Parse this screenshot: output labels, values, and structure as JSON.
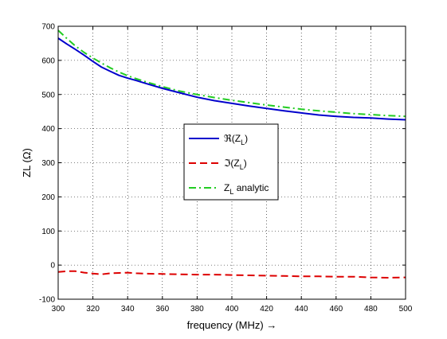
{
  "chart_data": {
    "type": "line",
    "title": "",
    "xlabel": "frequency (MHz) →",
    "ylabel": "ZL (Ω)",
    "xlim": [
      300,
      500
    ],
    "ylim": [
      -100,
      700
    ],
    "xticks": [
      300,
      320,
      340,
      360,
      380,
      400,
      420,
      440,
      460,
      480,
      500
    ],
    "yticks": [
      -100,
      0,
      100,
      200,
      300,
      400,
      500,
      600,
      700
    ],
    "grid": true,
    "legend_position": "center",
    "series": [
      {
        "name": "ℜ(Z_L)",
        "legend_main": "ℜ(Z",
        "legend_sub": "L",
        "legend_tail": ")",
        "color": "#0000cc",
        "style": "solid",
        "x": [
          300,
          305,
          310,
          315,
          320,
          325,
          330,
          335,
          340,
          345,
          350,
          360,
          370,
          380,
          390,
          400,
          410,
          420,
          430,
          440,
          450,
          460,
          470,
          480,
          490,
          500
        ],
        "values": [
          665,
          648,
          632,
          615,
          597,
          580,
          568,
          556,
          548,
          541,
          533,
          518,
          505,
          492,
          482,
          474,
          466,
          459,
          452,
          446,
          440,
          436,
          433,
          431,
          428,
          426
        ]
      },
      {
        "name": "ℑ(Z_L)",
        "legend_main": "ℑ(Z",
        "legend_sub": "L",
        "legend_tail": ")",
        "color": "#dd0000",
        "style": "dashed",
        "x": [
          300,
          305,
          310,
          315,
          320,
          325,
          330,
          335,
          340,
          345,
          350,
          360,
          370,
          380,
          390,
          400,
          410,
          420,
          430,
          440,
          450,
          460,
          470,
          480,
          490,
          500
        ],
        "values": [
          -20,
          -18,
          -18,
          -22,
          -25,
          -27,
          -24,
          -23,
          -22,
          -24,
          -25,
          -26,
          -27,
          -28,
          -28,
          -29,
          -30,
          -31,
          -32,
          -33,
          -33,
          -34,
          -34,
          -36,
          -37,
          -36
        ]
      },
      {
        "name": "Z_L analytic",
        "legend_main": "Z",
        "legend_sub": "L",
        "legend_tail": " analytic",
        "color": "#22cc22",
        "style": "dashdot",
        "x": [
          300,
          305,
          310,
          315,
          320,
          325,
          330,
          335,
          340,
          345,
          350,
          360,
          370,
          380,
          390,
          400,
          410,
          420,
          430,
          440,
          450,
          460,
          470,
          480,
          490,
          500
        ],
        "values": [
          688,
          664,
          642,
          623,
          607,
          592,
          578,
          566,
          555,
          546,
          538,
          523,
          510,
          500,
          491,
          483,
          476,
          469,
          463,
          457,
          452,
          448,
          444,
          441,
          438,
          436
        ]
      }
    ]
  }
}
